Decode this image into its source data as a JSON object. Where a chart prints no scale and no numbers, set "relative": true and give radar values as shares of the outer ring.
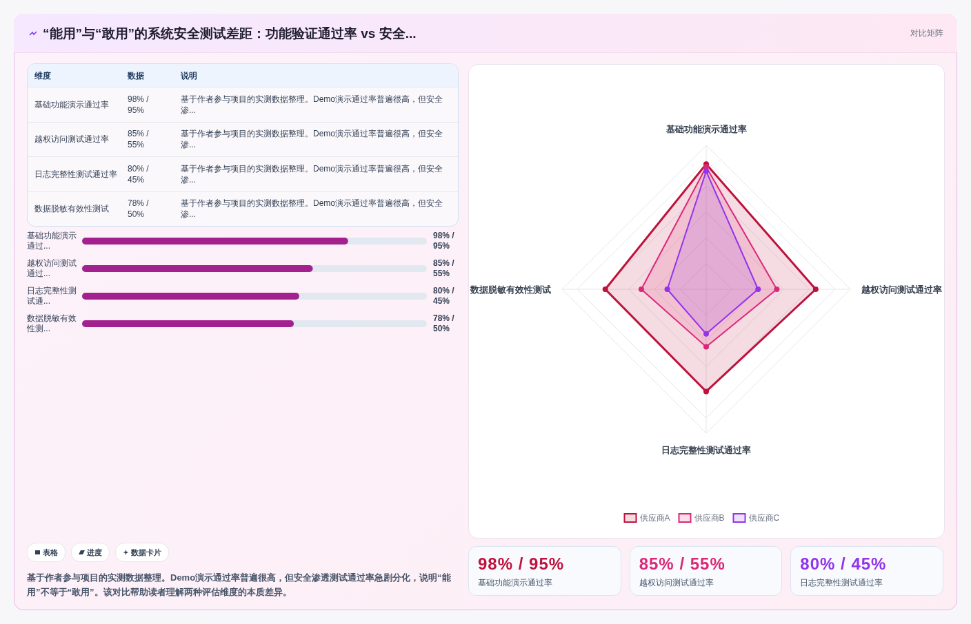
{
  "chart_data": [
    {
      "type": "other",
      "title": "“能用”与“敢用”的系统安全测试差距：功能验证通过率 vs 安全...",
      "annotations": [
        "对比矩阵"
      ]
    },
    {
      "type": "other",
      "annotations": [
        "维度",
        "数据",
        "说明",
        "基础功能演示通过率",
        "98% / 95%",
        "基于作者参与项目的实测数据整理。Demo演示通过率普遍很高，但安全渗...",
        "越权访问测试通过率",
        "85% / 55%",
        "基于作者参与项目的实测数据整理。Demo演示通过率普遍很高，但安全渗...",
        "日志完整性测试通过率",
        "80% / 45%",
        "基于作者参与项目的实测数据整理。Demo演示通过率普遍很高，但安全渗...",
        "数据脱敏有效性测试",
        "78% / 50%",
        "基于作者参与项目的实测数据整理。Demo演示通过率普遍很高，但安全渗..."
      ]
    },
    {
      "type": "bar",
      "orientation": "horizontal",
      "xlim": [
        0,
        127
      ],
      "categories": [
        "基础功能演示通过...",
        "越权访问测试通过...",
        "日志完整性测试通...",
        "数据脱敏有效性测..."
      ],
      "values": [
        98,
        85,
        80,
        78
      ],
      "color": "#a3218f",
      "value_labels": [
        "98% / 95%",
        "85% / 55%",
        "80% / 45%",
        "78% / 50%"
      ]
    },
    {
      "type": "radar",
      "relative": true,
      "grid": true,
      "legend": "bottom",
      "marker": "circle",
      "categories": [
        "基础功能演示通过率",
        "越权访问测试通过率",
        "日志完整性测试通过率",
        "数据脱敏有效性测试"
      ],
      "series": [
        {
          "name": "供应商A",
          "color": "#be123c",
          "values": [
            0.87,
            0.76,
            0.71,
            0.7
          ]
        },
        {
          "name": "供应商B",
          "color": "#db2777",
          "values": [
            0.85,
            0.49,
            0.4,
            0.45
          ]
        },
        {
          "name": "供应商C",
          "color": "#9333ea",
          "values": [
            0.82,
            0.36,
            0.31,
            0.27
          ]
        }
      ]
    },
    {
      "type": "other",
      "annotations": [
        "表格",
        "进度",
        "数据卡片",
        "基于作者参与项目的实测数据整理。Demo演示通过率普遍很高，但安全渗透测试通过率急剧分化，说明“能用”不等于“敢用”。该对比帮助读者理解两种评估维度的本质差异。"
      ]
    },
    {
      "type": "other",
      "annotations": [
        "98% / 95%",
        "基础功能演示通过率",
        "85% / 55%",
        "越权访问测试通过率",
        "80% / 45%",
        "日志完整性测试通过率"
      ]
    }
  ]
}
